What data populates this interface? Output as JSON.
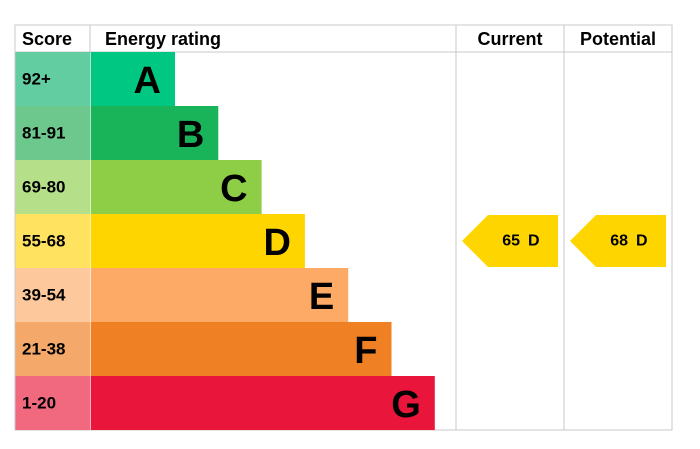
{
  "header": {
    "score": "Score",
    "rating": "Energy rating",
    "current": "Current",
    "potential": "Potential"
  },
  "bands": [
    {
      "score": "92+",
      "letter": "A",
      "color": "#00c781",
      "score_color": "#63cda2"
    },
    {
      "score": "81-91",
      "letter": "B",
      "color": "#19b459",
      "score_color": "#6dc88d"
    },
    {
      "score": "69-80",
      "letter": "C",
      "color": "#8dce46",
      "score_color": "#b6df8a"
    },
    {
      "score": "55-68",
      "letter": "D",
      "color": "#ffd500",
      "score_color": "#ffe360"
    },
    {
      "score": "39-54",
      "letter": "E",
      "color": "#fcaa65",
      "score_color": "#fdc89b"
    },
    {
      "score": "21-38",
      "letter": "F",
      "color": "#ef8023",
      "score_color": "#f4a86a"
    },
    {
      "score": "1-20",
      "letter": "G",
      "color": "#e9153b",
      "score_color": "#f0697f"
    }
  ],
  "current": {
    "value": 65,
    "letter": "D"
  },
  "potential": {
    "value": 68,
    "letter": "D"
  }
}
